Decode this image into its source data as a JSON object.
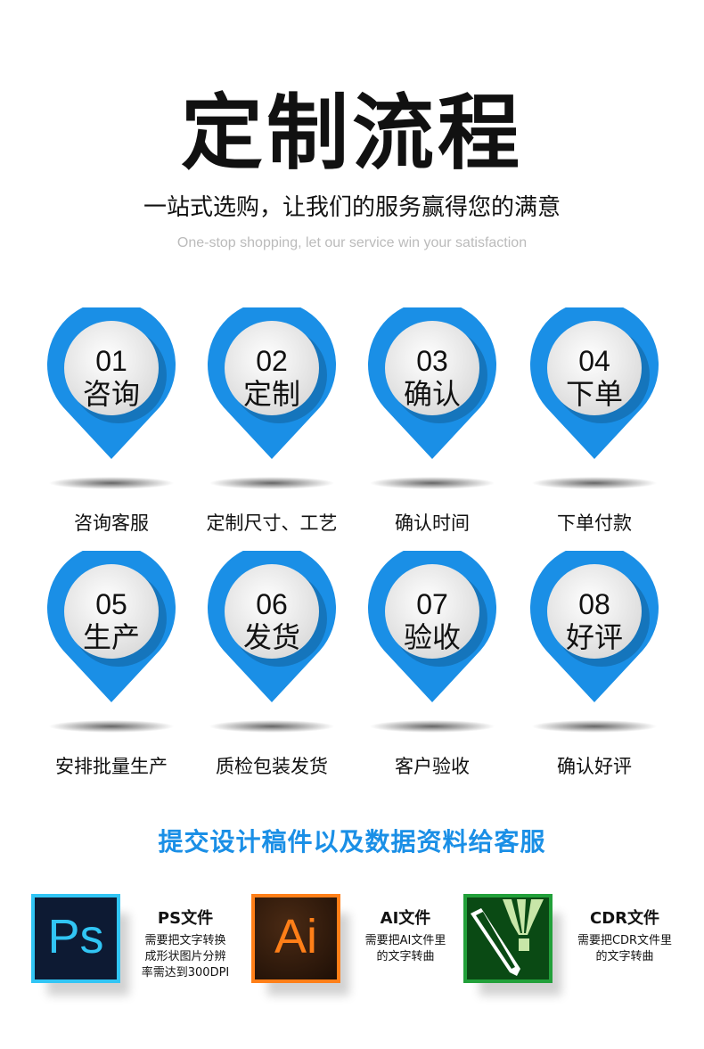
{
  "header": {
    "title": "定制流程",
    "subtitle": "一站式选购，让我们的服务赢得您的满意",
    "subtitle_en": "One-stop shopping, let our service win your satisfaction"
  },
  "colors": {
    "pin": "#1a8fe6",
    "accent": "#1a8fe6"
  },
  "steps": [
    {
      "num": "01",
      "name": "咨询",
      "label": "咨询客服"
    },
    {
      "num": "02",
      "name": "定制",
      "label": "定制尺寸、工艺"
    },
    {
      "num": "03",
      "name": "确认",
      "label": "确认时间"
    },
    {
      "num": "04",
      "name": "下单",
      "label": "下单付款"
    },
    {
      "num": "05",
      "name": "生产",
      "label": "安排批量生产"
    },
    {
      "num": "06",
      "name": "发货",
      "label": "质检包装发货"
    },
    {
      "num": "07",
      "name": "验收",
      "label": "客户验收"
    },
    {
      "num": "08",
      "name": "好评",
      "label": "确认好评"
    }
  ],
  "submit_title": "提交设计稿件以及数据资料给客服",
  "files": [
    {
      "icon": "photoshop-icon",
      "icon_text": "Ps",
      "title": "PS文件",
      "desc": [
        "需要把文字转换",
        "成形状图片分辨",
        "率需达到300DPI"
      ]
    },
    {
      "icon": "illustrator-icon",
      "icon_text": "Ai",
      "title": "AI文件",
      "desc": [
        "需要把AI文件里",
        "的文字转曲"
      ]
    },
    {
      "icon": "coreldraw-icon",
      "title": "CDR文件",
      "desc": [
        "需要把CDR文件里",
        "的文字转曲"
      ]
    }
  ]
}
